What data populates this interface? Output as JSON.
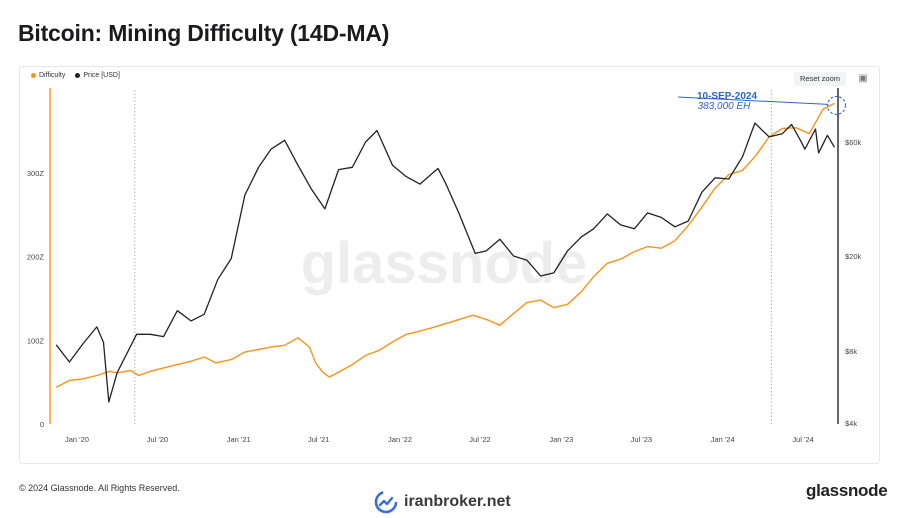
{
  "header": {
    "title": "Bitcoin: Mining Difficulty (14D-MA)"
  },
  "legend": [
    {
      "label": "Difficulty",
      "color": "#f7931a"
    },
    {
      "label": "Price [USD]",
      "color": "#222222"
    }
  ],
  "toolbar": {
    "reset_label": "Reset zoom",
    "camera_icon": "camera-icon"
  },
  "annotation": {
    "date": "10-SEP-2024",
    "value": "383,000 EH"
  },
  "watermark": "glassnode",
  "footer": {
    "copyright": "© 2024 Glassnode. All Rights Reserved.",
    "brand": "glassnode",
    "site": "iranbroker.net"
  },
  "chart_data": {
    "type": "line",
    "x_ticks": [
      "Jan '20",
      "Jul '20",
      "Jan '21",
      "Jul '21",
      "Jan '22",
      "Jul '22",
      "Jan '23",
      "Jul '23",
      "Jan '24",
      "Jul '24"
    ],
    "y_left_ticks": [
      "0",
      "100Z",
      "200Z",
      "300Z"
    ],
    "y_right_ticks": [
      "$4k",
      "$8k",
      "$20k",
      "$60k"
    ],
    "y_right_scale": "log",
    "series": [
      {
        "name": "Difficulty",
        "axis": "left",
        "color": "#f7931a",
        "points": [
          [
            "2019-11-15",
            44
          ],
          [
            "2019-12-15",
            52
          ],
          [
            "2020-01-15",
            54
          ],
          [
            "2020-02-15",
            58
          ],
          [
            "2020-03-15",
            63
          ],
          [
            "2020-04-01",
            61
          ],
          [
            "2020-05-01",
            64
          ],
          [
            "2020-05-20",
            58
          ],
          [
            "2020-06-15",
            63
          ],
          [
            "2020-07-15",
            67
          ],
          [
            "2020-08-15",
            71
          ],
          [
            "2020-09-15",
            75
          ],
          [
            "2020-10-15",
            80
          ],
          [
            "2020-11-10",
            73
          ],
          [
            "2020-12-15",
            77
          ],
          [
            "2021-01-15",
            86
          ],
          [
            "2021-02-15",
            89
          ],
          [
            "2021-03-15",
            92
          ],
          [
            "2021-04-15",
            94
          ],
          [
            "2021-05-15",
            103
          ],
          [
            "2021-06-10",
            92
          ],
          [
            "2021-06-25",
            72
          ],
          [
            "2021-07-10",
            62
          ],
          [
            "2021-07-25",
            56
          ],
          [
            "2021-08-15",
            62
          ],
          [
            "2021-09-15",
            71
          ],
          [
            "2021-10-15",
            82
          ],
          [
            "2021-11-15",
            88
          ],
          [
            "2021-12-15",
            98
          ],
          [
            "2022-01-15",
            107
          ],
          [
            "2022-02-15",
            111
          ],
          [
            "2022-03-15",
            115
          ],
          [
            "2022-04-15",
            120
          ],
          [
            "2022-05-15",
            125
          ],
          [
            "2022-06-15",
            130
          ],
          [
            "2022-07-15",
            125
          ],
          [
            "2022-08-15",
            118
          ],
          [
            "2022-09-15",
            132
          ],
          [
            "2022-10-15",
            145
          ],
          [
            "2022-11-15",
            148
          ],
          [
            "2022-12-15",
            139
          ],
          [
            "2023-01-15",
            143
          ],
          [
            "2023-02-15",
            158
          ],
          [
            "2023-03-15",
            176
          ],
          [
            "2023-04-15",
            192
          ],
          [
            "2023-05-15",
            197
          ],
          [
            "2023-06-15",
            206
          ],
          [
            "2023-07-15",
            212
          ],
          [
            "2023-08-15",
            210
          ],
          [
            "2023-09-15",
            219
          ],
          [
            "2023-10-15",
            237
          ],
          [
            "2023-11-15",
            259
          ],
          [
            "2023-12-15",
            282
          ],
          [
            "2024-01-15",
            298
          ],
          [
            "2024-02-15",
            303
          ],
          [
            "2024-03-15",
            320
          ],
          [
            "2024-04-15",
            343
          ],
          [
            "2024-05-15",
            353
          ],
          [
            "2024-06-15",
            354
          ],
          [
            "2024-07-15",
            347
          ],
          [
            "2024-08-15",
            376
          ],
          [
            "2024-09-10",
            383
          ]
        ]
      },
      {
        "name": "Price [USD]",
        "axis": "right",
        "color": "#222222",
        "points": [
          [
            "2019-11-15",
            8500
          ],
          [
            "2019-12-15",
            7200
          ],
          [
            "2020-01-15",
            8600
          ],
          [
            "2020-02-15",
            10100
          ],
          [
            "2020-03-01",
            8700
          ],
          [
            "2020-03-13",
            4900
          ],
          [
            "2020-04-01",
            6500
          ],
          [
            "2020-05-15",
            9400
          ],
          [
            "2020-06-15",
            9400
          ],
          [
            "2020-07-15",
            9200
          ],
          [
            "2020-08-15",
            11800
          ],
          [
            "2020-09-15",
            10700
          ],
          [
            "2020-10-15",
            11400
          ],
          [
            "2020-11-15",
            16000
          ],
          [
            "2020-12-15",
            19500
          ],
          [
            "2021-01-15",
            36000
          ],
          [
            "2021-02-15",
            47000
          ],
          [
            "2021-03-15",
            56000
          ],
          [
            "2021-04-15",
            61000
          ],
          [
            "2021-05-15",
            48000
          ],
          [
            "2021-06-15",
            38000
          ],
          [
            "2021-07-15",
            31500
          ],
          [
            "2021-08-15",
            46000
          ],
          [
            "2021-09-15",
            47000
          ],
          [
            "2021-10-15",
            60000
          ],
          [
            "2021-11-10",
            67000
          ],
          [
            "2021-12-15",
            48000
          ],
          [
            "2022-01-15",
            43000
          ],
          [
            "2022-02-15",
            40000
          ],
          [
            "2022-03-28",
            46500
          ],
          [
            "2022-04-15",
            40000
          ],
          [
            "2022-05-15",
            30000
          ],
          [
            "2022-06-20",
            20500
          ],
          [
            "2022-07-15",
            21000
          ],
          [
            "2022-08-15",
            23500
          ],
          [
            "2022-09-15",
            20000
          ],
          [
            "2022-10-15",
            19200
          ],
          [
            "2022-11-15",
            16500
          ],
          [
            "2022-12-15",
            17000
          ],
          [
            "2023-01-15",
            21000
          ],
          [
            "2023-02-15",
            24000
          ],
          [
            "2023-03-15",
            26000
          ],
          [
            "2023-04-15",
            30000
          ],
          [
            "2023-05-15",
            27000
          ],
          [
            "2023-06-15",
            26000
          ],
          [
            "2023-07-15",
            30300
          ],
          [
            "2023-08-15",
            29000
          ],
          [
            "2023-09-15",
            26500
          ],
          [
            "2023-10-15",
            28000
          ],
          [
            "2023-11-15",
            37000
          ],
          [
            "2023-12-15",
            42500
          ],
          [
            "2024-01-15",
            42000
          ],
          [
            "2024-02-15",
            52000
          ],
          [
            "2024-03-14",
            72000
          ],
          [
            "2024-04-15",
            63000
          ],
          [
            "2024-05-15",
            65000
          ],
          [
            "2024-06-05",
            71000
          ],
          [
            "2024-06-25",
            61000
          ],
          [
            "2024-07-05",
            56000
          ],
          [
            "2024-07-29",
            68000
          ],
          [
            "2024-08-05",
            54000
          ],
          [
            "2024-08-25",
            64000
          ],
          [
            "2024-09-10",
            57000
          ]
        ]
      }
    ],
    "grid": false,
    "legend_position": "top-left"
  }
}
